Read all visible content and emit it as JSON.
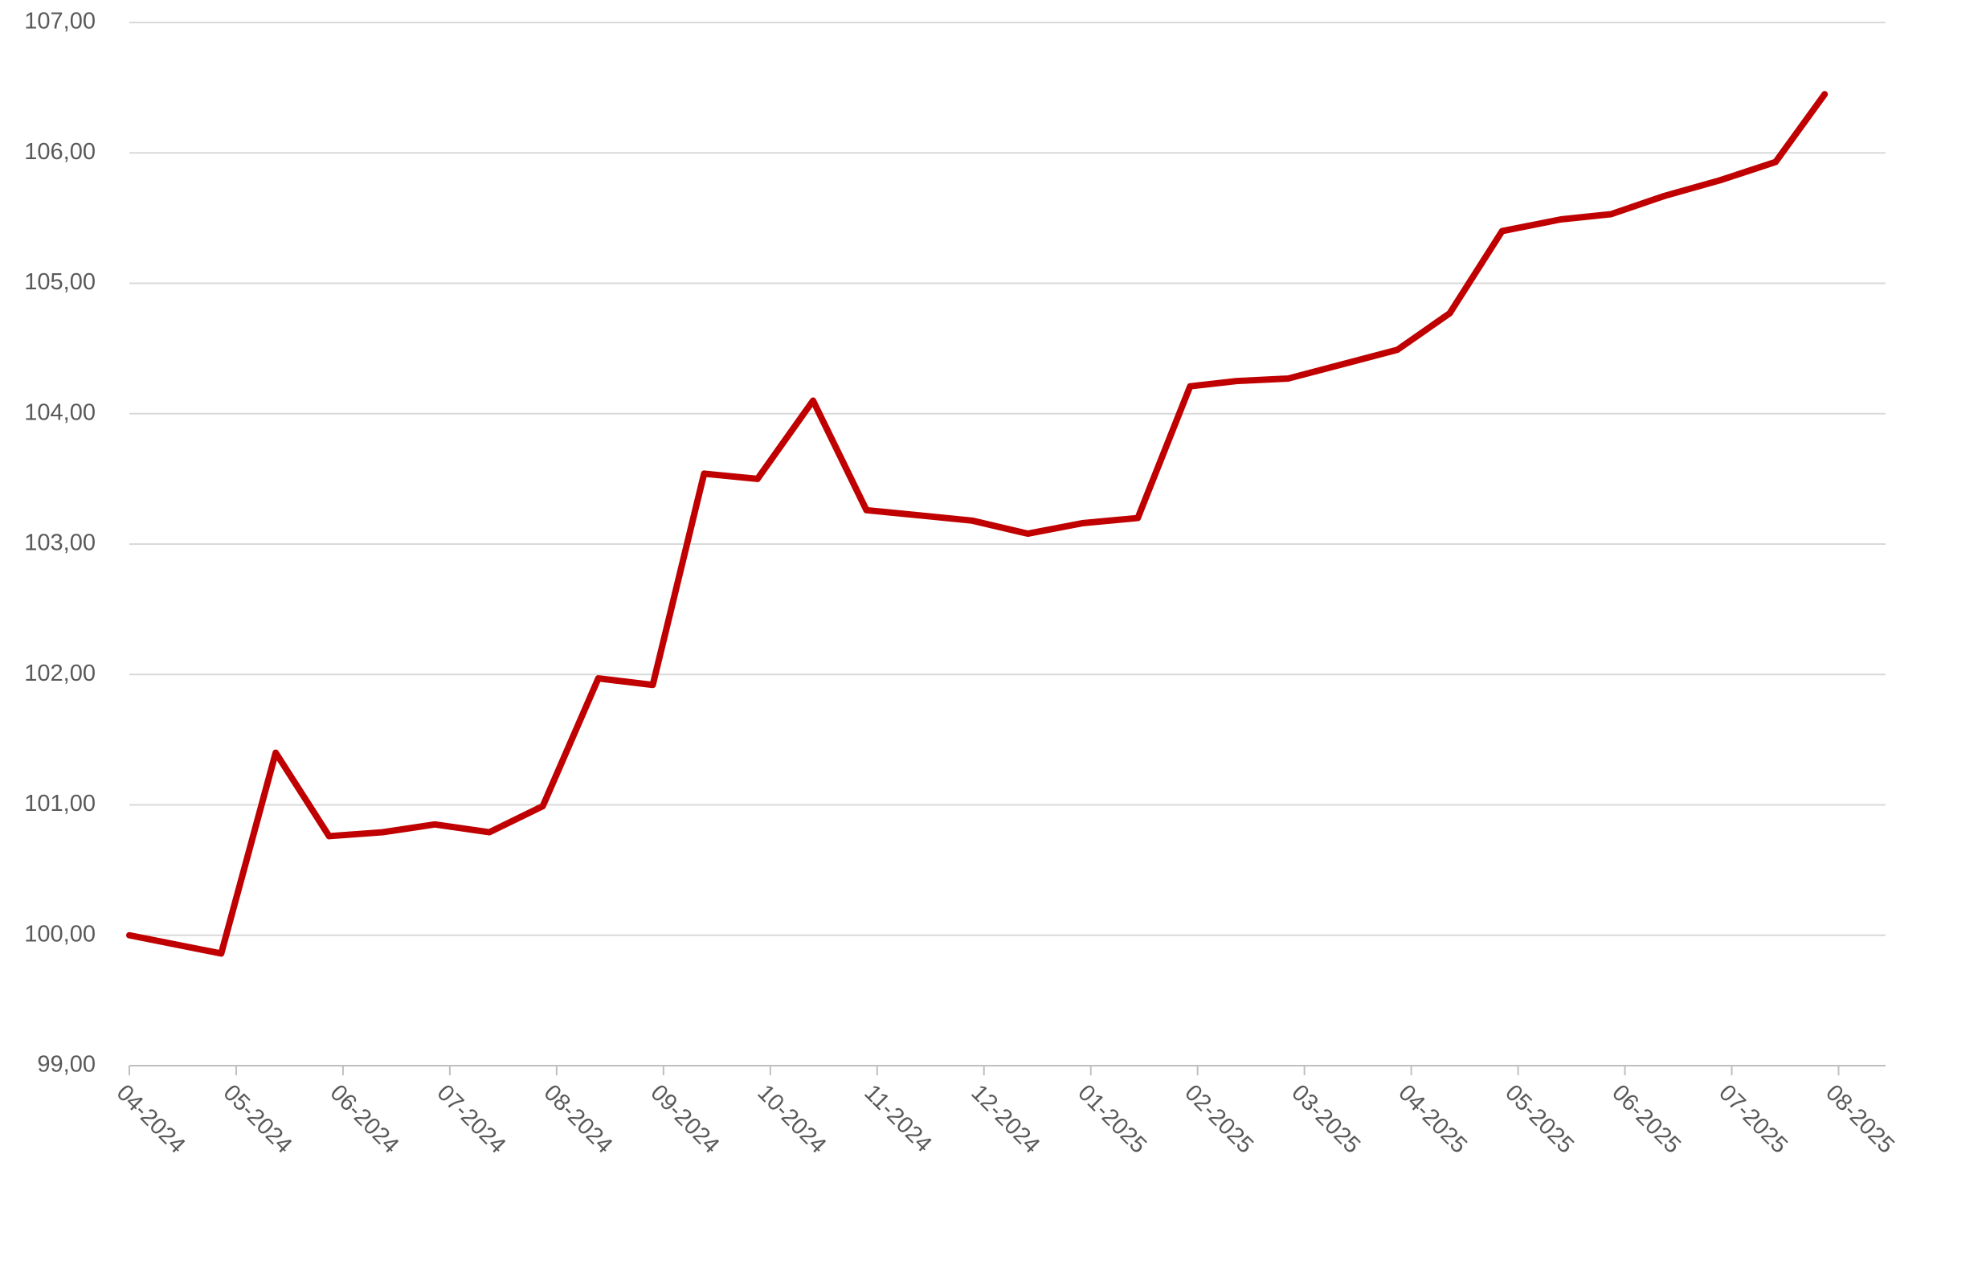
{
  "chart_data": {
    "type": "line",
    "x": [
      0,
      0.86,
      1.37,
      1.87,
      2.37,
      2.86,
      3.37,
      3.87,
      4.39,
      4.9,
      5.38,
      5.88,
      6.4,
      6.9,
      7.4,
      7.89,
      8.41,
      8.92,
      9.44,
      9.93,
      10.36,
      10.85,
      11.36,
      11.87,
      12.36,
      12.85,
      13.4,
      13.87,
      14.37,
      14.89,
      15.41,
      15.87
    ],
    "series": [
      {
        "color": "#c00000",
        "values": [
          100.0,
          99.86,
          101.4,
          100.76,
          100.79,
          100.85,
          100.79,
          100.99,
          101.97,
          101.92,
          103.54,
          103.5,
          104.1,
          103.26,
          103.22,
          103.18,
          103.08,
          103.16,
          103.2,
          104.21,
          104.25,
          104.27,
          104.38,
          104.49,
          104.77,
          105.4,
          105.49,
          105.53,
          105.67,
          105.79,
          105.93,
          106.45
        ]
      }
    ],
    "xlim": [
      0,
      16.44
    ],
    "xticks": [
      {
        "value": 0,
        "label": "04-2024"
      },
      {
        "value": 1,
        "label": "05-2024"
      },
      {
        "value": 2,
        "label": "06-2024"
      },
      {
        "value": 3,
        "label": "07-2024"
      },
      {
        "value": 4,
        "label": "08-2024"
      },
      {
        "value": 5,
        "label": "09-2024"
      },
      {
        "value": 6,
        "label": "10-2024"
      },
      {
        "value": 7,
        "label": "11-2024"
      },
      {
        "value": 8,
        "label": "12-2024"
      },
      {
        "value": 9,
        "label": "01-2025"
      },
      {
        "value": 10,
        "label": "02-2025"
      },
      {
        "value": 11,
        "label": "03-2025"
      },
      {
        "value": 12,
        "label": "04-2025"
      },
      {
        "value": 13,
        "label": "05-2025"
      },
      {
        "value": 14,
        "label": "06-2025"
      },
      {
        "value": 15,
        "label": "07-2025"
      },
      {
        "value": 16,
        "label": "08-2025"
      }
    ],
    "ylim": [
      99,
      107
    ],
    "yticks": [
      {
        "value": 99,
        "label": "99,00"
      },
      {
        "value": 100,
        "label": "100,00"
      },
      {
        "value": 101,
        "label": "101,00"
      },
      {
        "value": 102,
        "label": "102,00"
      },
      {
        "value": 103,
        "label": "103,00"
      },
      {
        "value": 104,
        "label": "104,00"
      },
      {
        "value": 105,
        "label": "105,00"
      },
      {
        "value": 106,
        "label": "106,00"
      },
      {
        "value": 107,
        "label": "107,00"
      }
    ],
    "grid": true
  }
}
